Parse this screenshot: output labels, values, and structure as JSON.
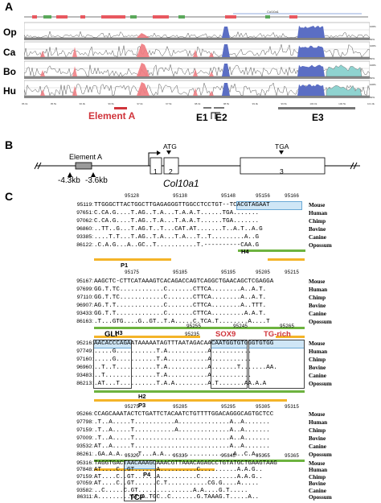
{
  "panelA": {
    "label": "A",
    "header_text": "Col10a1",
    "species": [
      "Op",
      "Ca",
      "Bo",
      "Hu"
    ],
    "axis_ticks": [
      "95.0k",
      "95.5k",
      "96.0k",
      "96.5k",
      "97.0k",
      "97.5k",
      "98.0k",
      "98.5k",
      "99.0k",
      "99.5k",
      "100.0k",
      "100.5k",
      "101.0k"
    ],
    "pct_top": "100%",
    "pct_bottom": "50%",
    "element_label": "Element A",
    "exon_labels": [
      "E1",
      "E2",
      "E3"
    ],
    "colors": {
      "element": "#e8585f",
      "exon": "#5b6ec4",
      "utr": "#8fd3d0",
      "noncoding": "#f07a80"
    }
  },
  "panelB": {
    "label": "B",
    "element_label": "Element A",
    "pos1": "-4.3kb",
    "pos2": "-3.6kb",
    "atg": "ATG",
    "tga": "TGA",
    "exons": [
      "1",
      "2",
      "3"
    ],
    "gene": "Col10a1"
  },
  "panelC": {
    "label": "C",
    "species": [
      "Mouse",
      "Human",
      "Chimp",
      "Bovine",
      "Canine",
      "Opossum"
    ],
    "blocks": [
      {
        "coords": [
          "95128",
          "95138",
          "95148",
          "95156",
          "95166"
        ],
        "nums": [
          "95119:",
          "97651:",
          "97062:",
          "96860:",
          "93385:",
          "86122:"
        ],
        "seqs": [
          "TTGGGCTTACTGGCTTGAGAGGGTTGGCCTCCTGT--TCACGTAGAAT",
          "C.CA.G....T.AG..T.A...T.A.A.T......TGA.......",
          "C.CA.G....T.AG..T.A...T.A.A.T......TGA.......",
          "..TT..G...T.AG.T..T...CAT.AT.......T..A.T..A.G",
          "....T.T...T.AG..T.A...T.A...T..T.........A..G",
          ".C.A.G...A..GC..T...........T.----------CAA.G"
        ],
        "bars": [
          {
            "id": "H4"
          },
          {
            "id": "P1"
          }
        ]
      },
      {
        "coords": [
          "95175",
          "95185",
          "95195",
          "95205",
          "95215"
        ],
        "nums": [
          "95167:",
          "97699:",
          "97110:",
          "96907:",
          "93433:",
          "86163:"
        ],
        "seqs": [
          "AAGCTC-CTTCATAAAGTCACAGACCAGTCAGGCTGAACAGCTCGAGGA",
          "GG.T.TC............C.......CTTCA........A..A.T.",
          "GG.T.TC............C.......CTTCA........A..A.T.",
          "AG.T.T.............C.......CTTCA........A..TTT.",
          "GG.T.T.............C.......CTTCA.........A.A.T.",
          ".T...GTG....G..GT..T.A.....C.TCA.T........A....T"
        ],
        "bars": [
          {
            "id": "H3"
          },
          {
            "id": "P2"
          }
        ]
      },
      {
        "coords": [
          "95235",
          "95245",
          "95255",
          "95265"
        ],
        "motifs": [
          "GLI",
          "SOX9",
          "TG-rich"
        ],
        "nums": [
          "95216:",
          "97749:",
          "97160:",
          "96960:",
          "93483:",
          "86213:"
        ],
        "seqs": [
          "AACACCCAGAATAAAAATAGTTTAATAGACAACAATGGTGTGGGTGTGG",
          ".....G...........T.A...........A...........",
          ".....G...........T.A...........A...........",
          "..T..T...........T.A...........A.......T.......AA.",
          "..T..............T.A...........A...........",
          ".AT...T..........T.A.A.........A.T.......AA.A.A"
        ],
        "bars": [
          {
            "id": "H2"
          },
          {
            "id": "P3"
          }
        ]
      },
      {
        "coords": [
          "95275",
          "95285",
          "95295",
          "95305",
          "95315"
        ],
        "nums": [
          "95266:",
          "97798:",
          "97159:",
          "97009:",
          "93532:",
          "86261:"
        ],
        "seqs": [
          "CCAGCAAATACTCTGATTCTACAATCTGTTTTGGACAGGGCAGTGCTCC",
          ".T..A.....T...........A..............A..A.......",
          ".T..A.....T...........A..............A..A.......",
          ".T..A.....T..........................A..A.......",
          "AT..A.....T..........................A..A.......",
          ".GA.A.A.....T...A.A...................A..C.A...."
        ],
        "bars": [
          {
            "id": "H1"
          },
          {
            "id": "P4"
          }
        ]
      },
      {
        "coords": [
          "95325",
          "95335",
          "95345",
          "95355",
          "95365"
        ],
        "motifs": [
          "TCF"
        ],
        "nums": [
          "95316:",
          "97848:",
          "97159:",
          "97059:",
          "93582:",
          "86311:"
        ],
        "seqs": [
          "TAGGTGACTAACAAAGCAAACGTTAAACAGAGCCTGTATGCTGAAGTAAG",
          "AT....C..GT......A..........C..........A.A.G..",
          "AT....C..GT......A..........C..........A.A.G..",
          "AT....C..GT......C.T...........CG.G....A.....",
          "..C.....C.GT...............A.A....G.T.....",
          "A.........GT.A.TGC..C.......G.TAAAG.T.....A.."
        ],
        "bars": []
      }
    ]
  }
}
